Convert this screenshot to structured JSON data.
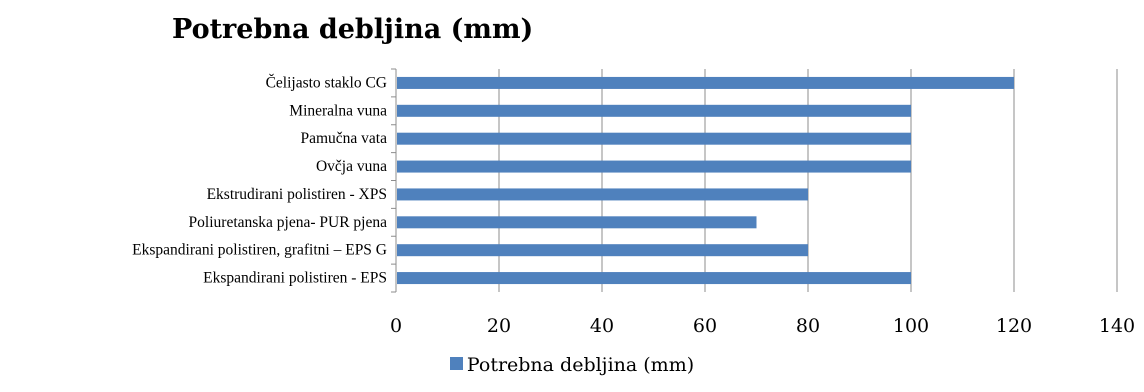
{
  "chart_data": {
    "type": "bar",
    "orientation": "horizontal",
    "title": "Potrebna debljina (mm)",
    "categories": [
      "Čelijasto staklo CG",
      "Mineralna vuna",
      "Pamučna vata",
      "Ovčja vuna",
      "Ekstrudirani polistiren - XPS",
      "Poliuretanska pjena- PUR pjena",
      "Ekspandirani polistiren, grafitni – EPS G",
      "Ekspandirani polistiren - EPS"
    ],
    "series": [
      {
        "name": "Potrebna debljina (mm)",
        "color": "#4f81bd",
        "values": [
          120,
          100,
          100,
          100,
          80,
          70,
          80,
          100
        ]
      }
    ],
    "xlim": [
      0,
      140
    ],
    "x_ticks": [
      0,
      20,
      40,
      60,
      80,
      100,
      120,
      140
    ],
    "grid": "vertical",
    "legend": "bottom"
  }
}
